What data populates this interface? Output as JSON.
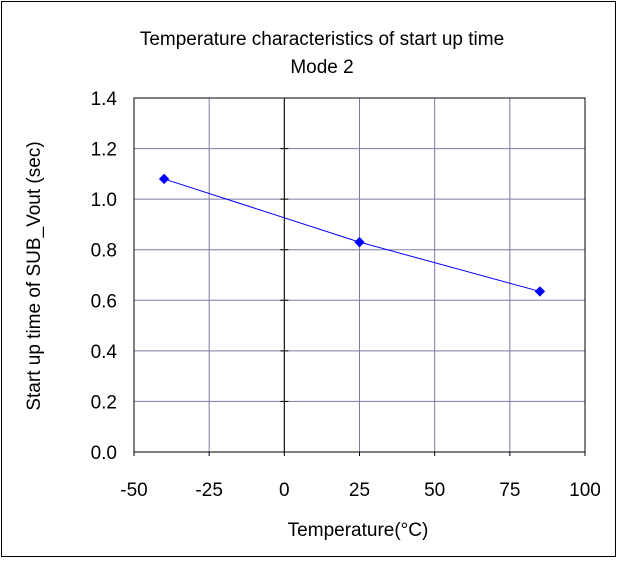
{
  "chart_data": {
    "type": "line",
    "title": "Temperature characteristics of  start up time",
    "subtitle": "Mode 2",
    "xlabel": "Temperature(°C)",
    "ylabel": "Start up time of  SUB_Vout (sec)",
    "xlim": [
      -50,
      100
    ],
    "ylim": [
      0,
      1.4
    ],
    "x_ticks": [
      -50,
      -25,
      0,
      25,
      50,
      75,
      100
    ],
    "y_ticks": [
      0.0,
      0.2,
      0.4,
      0.6,
      0.8,
      1.0,
      1.2,
      1.4
    ],
    "x_tick_labels": [
      "-50",
      "-25",
      "0",
      "25",
      "50",
      "75",
      "100"
    ],
    "y_tick_labels": [
      "0.0",
      "0.2",
      "0.4",
      "0.6",
      "0.8",
      "1.0",
      "1.2",
      "1.4"
    ],
    "grid": true,
    "legend": "none",
    "series": [
      {
        "x": [
          -40,
          25,
          85
        ],
        "y": [
          1.08,
          0.83,
          0.635
        ],
        "color": "#0000ff",
        "marker": "diamond"
      }
    ]
  }
}
